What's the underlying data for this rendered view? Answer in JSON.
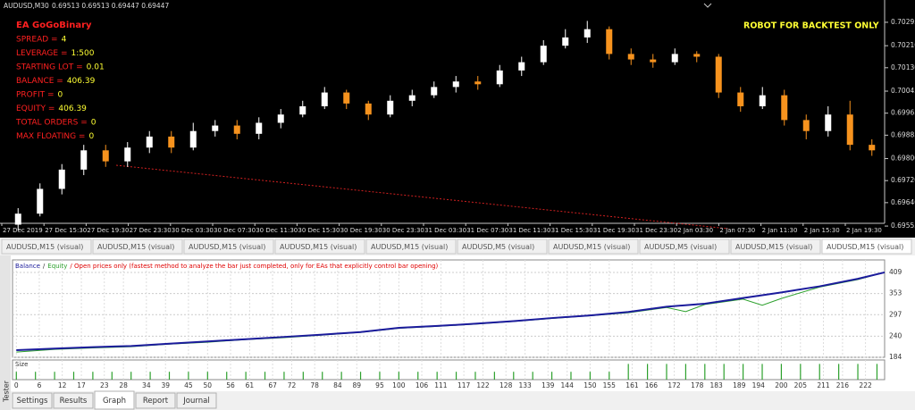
{
  "header": {
    "symbol": "AUDUSD,M30",
    "quote": "0.69513 0.69513 0.69447 0.69447"
  },
  "ea_info": {
    "name": "EA GoGoBinary",
    "rows": [
      {
        "label": "SPREAD =",
        "value": "4"
      },
      {
        "label": "LEVERAGE =",
        "value": "1:500"
      },
      {
        "label": "STARTING LOT =",
        "value": "0.01"
      },
      {
        "label": "BALANCE =",
        "value": "406.39"
      },
      {
        "label": "PROFIT =",
        "value": "0"
      },
      {
        "label": "EQUITY =",
        "value": "406.39"
      },
      {
        "label": "TOTAL ORDERS =",
        "value": "0"
      },
      {
        "label": "MAX FLOATING =",
        "value": "0"
      }
    ]
  },
  "notice": "ROBOT FOR BACKTEST ONLY",
  "price_chart": {
    "ylim": [
      0.69539,
      0.7035
    ],
    "yticks": [
      {
        "value": 0.70295,
        "label": "0.70295"
      },
      {
        "value": 0.7021,
        "label": "0.70210"
      },
      {
        "value": 0.7013,
        "label": "0.70130"
      },
      0.70045,
      0.69965,
      0.69885,
      {
        "value": 0.698,
        "label": "0.69800"
      },
      {
        "value": 0.6972,
        "label": "0.69720"
      },
      {
        "value": 0.6964,
        "label": "0.69640"
      },
      0.69555
    ],
    "time_labels": [
      "27 Dec 2019",
      "27 Dec 15:30",
      "27 Dec 19:30",
      "27 Dec 23:30",
      "30 Dec 03:30",
      "30 Dec 07:30",
      "30 Dec 11:30",
      "30 Dec 15:30",
      "30 Dec 19:30",
      "30 Dec 23:30",
      "31 Dec 03:30",
      "31 Dec 07:30",
      "31 Dec 11:30",
      "31 Dec 15:30",
      "31 Dec 19:30",
      "31 Dec 23:30",
      "2 Jan 03:30",
      "2 Jan 07:30",
      "2 Jan 11:30",
      "2 Jan 15:30",
      "2 Jan 19:30"
    ],
    "candles": [
      [
        0.6956,
        0.6962,
        0.6954,
        0.696
      ],
      [
        0.696,
        0.6971,
        0.6959,
        0.6969
      ],
      [
        0.6969,
        0.6978,
        0.6967,
        0.6976
      ],
      [
        0.6976,
        0.6985,
        0.6974,
        0.6983
      ],
      [
        0.6983,
        0.6985,
        0.6977,
        0.6979
      ],
      [
        0.6979,
        0.6986,
        0.6977,
        0.6984
      ],
      [
        0.6984,
        0.699,
        0.6982,
        0.6988
      ],
      [
        0.6988,
        0.699,
        0.6982,
        0.6984
      ],
      [
        0.6984,
        0.6993,
        0.6983,
        0.699
      ],
      [
        0.699,
        0.6994,
        0.6988,
        0.6992
      ],
      [
        0.6992,
        0.6994,
        0.6987,
        0.6989
      ],
      [
        0.6989,
        0.6995,
        0.6987,
        0.6993
      ],
      [
        0.6993,
        0.6998,
        0.6991,
        0.6996
      ],
      [
        0.6996,
        0.7001,
        0.6995,
        0.6999
      ],
      [
        0.6999,
        0.7006,
        0.6998,
        0.7004
      ],
      [
        0.7004,
        0.7005,
        0.6998,
        0.7
      ],
      [
        0.7,
        0.7001,
        0.6994,
        0.6996
      ],
      [
        0.6996,
        0.7003,
        0.6995,
        0.7001
      ],
      [
        0.7001,
        0.7005,
        0.6999,
        0.7003
      ],
      [
        0.7003,
        0.7008,
        0.7002,
        0.7006
      ],
      [
        0.7006,
        0.701,
        0.7004,
        0.7008
      ],
      [
        0.7008,
        0.701,
        0.7005,
        0.7007
      ],
      [
        0.7007,
        0.7014,
        0.7006,
        0.7012
      ],
      [
        0.7012,
        0.7017,
        0.701,
        0.7015
      ],
      [
        0.7015,
        0.7023,
        0.7014,
        0.7021
      ],
      [
        0.7021,
        0.7027,
        0.702,
        0.7024
      ],
      [
        0.7024,
        0.703,
        0.7022,
        0.7027
      ],
      [
        0.7027,
        0.7028,
        0.7016,
        0.7018
      ],
      [
        0.7018,
        0.702,
        0.7014,
        0.7016
      ],
      [
        0.7016,
        0.7018,
        0.7013,
        0.7015
      ],
      [
        0.7015,
        0.702,
        0.7014,
        0.7018
      ],
      [
        0.7018,
        0.7019,
        0.7015,
        0.7017
      ],
      [
        0.7017,
        0.7018,
        0.7002,
        0.7004
      ],
      [
        0.7004,
        0.7006,
        0.6997,
        0.6999
      ],
      [
        0.6999,
        0.7006,
        0.6998,
        0.7003
      ],
      [
        0.7003,
        0.7005,
        0.6992,
        0.6994
      ],
      [
        0.6994,
        0.6996,
        0.6987,
        0.699
      ],
      [
        0.699,
        0.6999,
        0.6988,
        0.6996
      ],
      [
        0.6996,
        0.7001,
        0.6983,
        0.6985
      ],
      [
        0.6985,
        0.6987,
        0.6981,
        0.6983
      ]
    ]
  },
  "tabs": [
    "AUDUSD,M15 (visual)",
    "AUDUSD,M15 (visual)",
    "AUDUSD,M15 (visual)",
    "AUDUSD,M15 (visual)",
    "AUDUSD,M15 (visual)",
    "AUDUSD,M5 (visual)",
    "AUDUSD,M15 (visual)",
    "AUDUSD,M5 (visual)",
    "AUDUSD,M15 (visual)",
    "AUDUSD,M15 (visual)"
  ],
  "tester_graph": {
    "legend": {
      "balance": "Balance",
      "separator": "/",
      "equity": "Equity",
      "note": "/ Open prices only (fastest method to analyze the bar just completed, only for EAs that explicitly control bar opening)"
    },
    "ylim": [
      184,
      442
    ],
    "yticks": [
      409,
      353,
      297,
      240,
      184
    ],
    "xlim": [
      -1,
      227
    ],
    "xticks": [
      0,
      6,
      12,
      17,
      23,
      28,
      34,
      39,
      45,
      50,
      56,
      61,
      67,
      72,
      78,
      84,
      89,
      95,
      100,
      106,
      111,
      117,
      122,
      128,
      133,
      139,
      144,
      150,
      155,
      161,
      166,
      172,
      178,
      183,
      189,
      194,
      200,
      205,
      211,
      216,
      222
    ],
    "balance": {
      "color": "#1b1b9c",
      "x": [
        0,
        10,
        20,
        30,
        40,
        50,
        60,
        70,
        80,
        90,
        100,
        110,
        120,
        130,
        140,
        150,
        160,
        170,
        180,
        190,
        200,
        210,
        220,
        227
      ],
      "values": [
        203,
        207,
        211,
        214,
        220,
        226,
        232,
        238,
        244,
        251,
        262,
        267,
        273,
        280,
        288,
        295,
        304,
        318,
        326,
        341,
        356,
        372,
        392,
        409
      ]
    },
    "equity": {
      "color": "#2ca02c",
      "x": [
        0,
        10,
        20,
        30,
        40,
        50,
        60,
        70,
        80,
        90,
        100,
        110,
        120,
        130,
        140,
        150,
        160,
        170,
        175,
        180,
        190,
        195,
        200,
        210,
        220,
        227
      ],
      "values": [
        198,
        205,
        209,
        212,
        219,
        224,
        231,
        236,
        243,
        250,
        261,
        266,
        272,
        279,
        287,
        294,
        302,
        316,
        305,
        324,
        338,
        322,
        340,
        370,
        390,
        409
      ]
    },
    "size_label": "Size",
    "size_ylim": [
      0,
      0.025
    ],
    "size": {
      "color": "#2ca02c",
      "x": [
        0,
        5,
        10,
        15,
        20,
        25,
        30,
        35,
        40,
        45,
        50,
        55,
        60,
        65,
        70,
        75,
        80,
        85,
        90,
        95,
        100,
        105,
        110,
        115,
        120,
        125,
        130,
        135,
        140,
        145,
        150,
        155,
        160,
        165,
        170,
        175,
        180,
        185,
        190,
        195,
        200,
        205,
        210,
        215,
        220,
        225
      ],
      "values": [
        0.01,
        0.01,
        0.01,
        0.01,
        0.01,
        0.01,
        0.01,
        0.01,
        0.01,
        0.01,
        0.01,
        0.01,
        0.01,
        0.01,
        0.01,
        0.01,
        0.01,
        0.01,
        0.01,
        0.01,
        0.01,
        0.01,
        0.01,
        0.01,
        0.01,
        0.01,
        0.01,
        0.01,
        0.01,
        0.01,
        0.01,
        0.01,
        0.02,
        0.02,
        0.02,
        0.02,
        0.02,
        0.02,
        0.02,
        0.02,
        0.02,
        0.02,
        0.02,
        0.02,
        0.02,
        0.02
      ]
    }
  },
  "bottom_tabs": [
    "Settings",
    "Results",
    "Graph",
    "Report",
    "Journal"
  ],
  "side_label": "Tester"
}
